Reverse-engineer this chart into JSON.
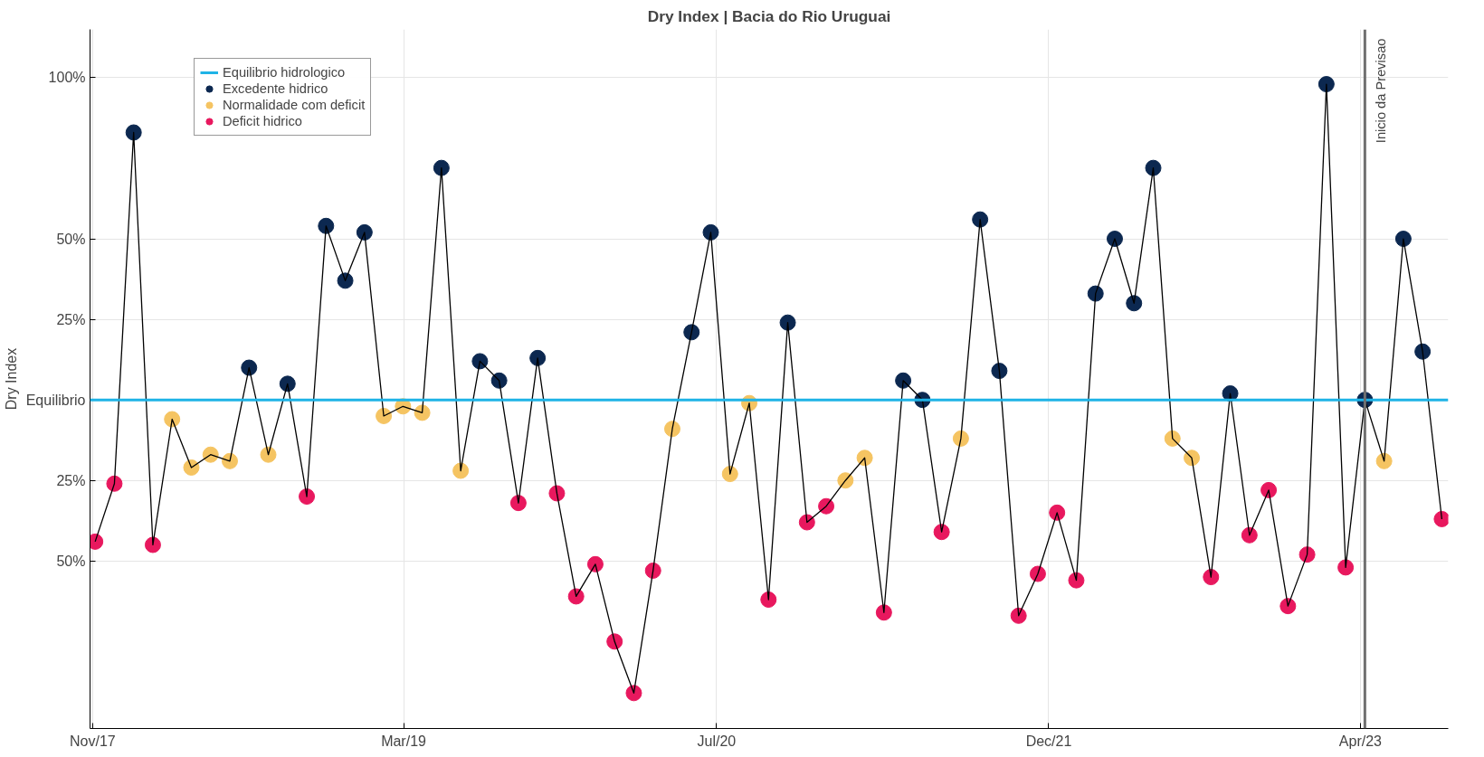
{
  "chart_data": {
    "type": "line",
    "title": "Dry Index | Bacia do Rio Uruguai",
    "ylabel": "Dry Index",
    "x": [
      "2017-11-05",
      "2017-12-05",
      "2018-01-04",
      "2018-02-03",
      "2018-03-05",
      "2018-04-04",
      "2018-05-04",
      "2018-06-03",
      "2018-07-03",
      "2018-08-02",
      "2018-09-01",
      "2018-10-01",
      "2018-10-31",
      "2018-11-30",
      "2018-12-30",
      "2019-01-29",
      "2019-02-28",
      "2019-03-30",
      "2019-04-29",
      "2019-05-29",
      "2019-06-28",
      "2019-07-28",
      "2019-08-27",
      "2019-09-26",
      "2019-10-26",
      "2019-11-25",
      "2019-12-25",
      "2020-01-24",
      "2020-02-23",
      "2020-03-24",
      "2020-04-23",
      "2020-05-23",
      "2020-06-22",
      "2020-07-22",
      "2020-08-21",
      "2020-09-20",
      "2020-10-20",
      "2020-11-19",
      "2020-12-19",
      "2021-01-18",
      "2021-02-17",
      "2021-03-19",
      "2021-04-18",
      "2021-05-18",
      "2021-06-17",
      "2021-07-17",
      "2021-08-16",
      "2021-09-15",
      "2021-10-15",
      "2021-11-14",
      "2021-12-14",
      "2022-01-13",
      "2022-02-12",
      "2022-03-14",
      "2022-04-13",
      "2022-05-13",
      "2022-06-12",
      "2022-07-12",
      "2022-08-11",
      "2022-09-10",
      "2022-10-10",
      "2022-11-09",
      "2022-12-09",
      "2023-01-08",
      "2023-02-07",
      "2023-03-09",
      "2023-04-08",
      "2023-05-08",
      "2023-06-07",
      "2023-07-07",
      "2023-08-06"
    ],
    "series": [
      {
        "color": "#000000",
        "marker": "none",
        "values": [
          -44,
          -26,
          83,
          -45,
          -6,
          -21,
          -17,
          -19,
          10,
          -17,
          5,
          -30,
          54,
          37,
          52,
          -5,
          -2,
          -4,
          72,
          -22,
          12,
          6,
          -32,
          13,
          -29,
          -61,
          -51,
          -75,
          -91,
          -53,
          -9,
          21,
          52,
          -23,
          -1,
          -62,
          24,
          -38,
          -33,
          -25,
          -18,
          -66,
          6,
          0,
          -41,
          -12,
          56,
          9,
          -67,
          -54,
          -35,
          -56,
          33,
          50,
          30,
          72,
          -12,
          -18,
          -55,
          2,
          -42,
          -28,
          -64,
          -48,
          98,
          -52,
          0,
          -19,
          50,
          15,
          -37
        ]
      },
      {
        "type": "scatter",
        "marker": "circle",
        "name": "Excedente hidrico",
        "color": "#0c2850",
        "values": [
          null,
          null,
          83,
          null,
          null,
          null,
          null,
          null,
          10,
          null,
          5,
          null,
          54,
          37,
          52,
          null,
          null,
          null,
          72,
          null,
          12,
          6,
          null,
          13,
          null,
          null,
          null,
          null,
          null,
          null,
          null,
          21,
          52,
          null,
          null,
          null,
          24,
          null,
          null,
          null,
          null,
          null,
          6,
          0,
          null,
          null,
          56,
          9,
          null,
          null,
          null,
          null,
          33,
          50,
          30,
          72,
          null,
          null,
          null,
          2,
          null,
          null,
          null,
          null,
          98,
          null,
          0,
          null,
          50,
          15,
          null
        ]
      },
      {
        "type": "scatter",
        "marker": "circle",
        "name": "Normalidade com deficit",
        "color": "#f5c462",
        "values": [
          null,
          null,
          null,
          null,
          -6,
          -21,
          -17,
          -19,
          null,
          -17,
          null,
          null,
          null,
          null,
          null,
          -5,
          -2,
          -4,
          null,
          -22,
          null,
          null,
          null,
          null,
          null,
          null,
          null,
          null,
          null,
          null,
          -9,
          null,
          null,
          -23,
          -1,
          null,
          null,
          null,
          null,
          -25,
          -18,
          null,
          null,
          null,
          null,
          -12,
          null,
          null,
          null,
          null,
          null,
          null,
          null,
          null,
          null,
          null,
          -12,
          -18,
          null,
          null,
          null,
          null,
          null,
          null,
          null,
          null,
          null,
          -19,
          null,
          null,
          null
        ]
      },
      {
        "type": "scatter",
        "marker": "circle",
        "name": "Deficit hidrico",
        "color": "#e8185e",
        "values": [
          -44,
          -26,
          null,
          -45,
          null,
          null,
          null,
          null,
          null,
          null,
          null,
          -30,
          null,
          null,
          null,
          null,
          null,
          null,
          null,
          null,
          null,
          null,
          -32,
          null,
          -29,
          -61,
          -51,
          -75,
          -91,
          -53,
          null,
          null,
          null,
          null,
          null,
          -62,
          null,
          -38,
          -33,
          null,
          null,
          -66,
          null,
          null,
          -41,
          null,
          null,
          null,
          -67,
          -54,
          -35,
          -56,
          null,
          null,
          null,
          null,
          null,
          null,
          -55,
          null,
          -42,
          -28,
          -64,
          -48,
          null,
          -52,
          null,
          null,
          null,
          null,
          -37
        ]
      }
    ],
    "xlim": [
      "2017-10-28",
      "2023-08-16"
    ],
    "xticks": [
      {
        "value": "2017-11-01",
        "label": "Nov/17"
      },
      {
        "value": "2019-03-01",
        "label": "Mar/19"
      },
      {
        "value": "2020-07-01",
        "label": "Jul/20"
      },
      {
        "value": "2021-12-01",
        "label": "Dec/21"
      },
      {
        "value": "2023-04-01",
        "label": "Apr/23"
      }
    ],
    "ylim": [
      -102,
      115
    ],
    "yticks": [
      {
        "value": -50,
        "label": "50%"
      },
      {
        "value": -25,
        "label": "25%"
      },
      {
        "value": 0,
        "label": "Equilibrio"
      },
      {
        "value": 25,
        "label": "25%"
      },
      {
        "value": 50,
        "label": "50%"
      },
      {
        "value": 100,
        "label": "100%"
      }
    ],
    "ref_lines": [
      {
        "axis": "y",
        "value": 0,
        "label": "Equilibrio hidrologico",
        "color": "#1fb3e6"
      },
      {
        "axis": "x",
        "value": "2023-04-08",
        "label": "Inicio da Previsao",
        "color": "#707070"
      }
    ],
    "grid": true,
    "legend": "top left"
  }
}
